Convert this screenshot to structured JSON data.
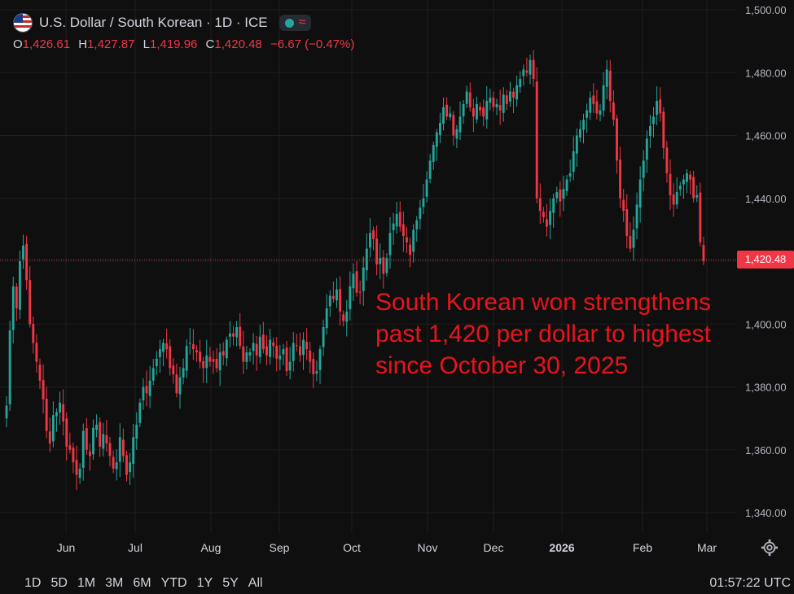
{
  "header": {
    "symbol": "U.S. Dollar / South Korean · 1D · ICE",
    "ohlc": {
      "open_label": "O",
      "open": "1,426.61",
      "high_label": "H",
      "high": "1,427.87",
      "low_label": "L",
      "low": "1,419.96",
      "close_label": "C",
      "close": "1,420.48",
      "change": "−6.67 (−0.47%)"
    }
  },
  "annotation": "South Korean won strengthens\npast 1,420 per dollar to highest\nsince October 30, 2025",
  "price_axis": {
    "ticks": [
      "1,500.00",
      "1,480.00",
      "1,460.00",
      "1,440.00",
      "1,420.00",
      "1,400.00",
      "1,380.00",
      "1,360.00",
      "1,340.00"
    ],
    "current_price": "1,420.48"
  },
  "time_axis": {
    "labels": [
      "Jun",
      "Jul",
      "Aug",
      "Sep",
      "Oct",
      "Nov",
      "Dec",
      "2026",
      "Feb",
      "Mar"
    ]
  },
  "bottom_bar": {
    "ranges": [
      "1D",
      "5D",
      "1M",
      "3M",
      "6M",
      "YTD",
      "1Y",
      "5Y",
      "All"
    ],
    "clock": "01:57:22 UTC"
  },
  "colors": {
    "up": "#26a69a",
    "down": "#f23645",
    "background": "#0f0f0f",
    "grid": "#1f1f1f",
    "annotation": "#e8141d"
  },
  "icons": {
    "flag": "us-kr-flag-icon",
    "status": "market-status-icon",
    "settings": "gear-icon"
  },
  "chart_data": {
    "type": "candlestick",
    "title": "U.S. Dollar / South Korean · 1D · ICE",
    "ylim": [
      1335,
      1502
    ],
    "x_labels": [
      "Jun",
      "Jul",
      "Aug",
      "Sep",
      "Oct",
      "Nov",
      "Dec",
      "2026",
      "Feb",
      "Mar"
    ],
    "series": [
      {
        "values": [
          1374,
          1398,
          1412,
          1405,
          1420,
          1425,
          1414,
          1400,
          1394,
          1388,
          1382,
          1376,
          1366,
          1362,
          1371,
          1372,
          1375,
          1369,
          1361,
          1360,
          1356,
          1352,
          1354,
          1366,
          1360,
          1358,
          1367,
          1368,
          1361,
          1365,
          1362,
          1358,
          1354,
          1356,
          1364,
          1358,
          1352,
          1356,
          1364,
          1368,
          1375,
          1380,
          1378,
          1382,
          1386,
          1389,
          1392,
          1394,
          1392,
          1386,
          1384,
          1378,
          1383,
          1386,
          1393,
          1394,
          1392,
          1391,
          1388,
          1386,
          1390,
          1388,
          1388,
          1386,
          1391,
          1390,
          1395,
          1397,
          1396,
          1399,
          1393,
          1388,
          1391,
          1391,
          1394,
          1390,
          1396,
          1392,
          1390,
          1395,
          1393,
          1389,
          1390,
          1392,
          1385,
          1388,
          1394,
          1393,
          1390,
          1395,
          1392,
          1388,
          1384,
          1385,
          1392,
          1399,
          1405,
          1409,
          1408,
          1411,
          1404,
          1401,
          1404,
          1412,
          1416,
          1410,
          1410,
          1418,
          1424,
          1429,
          1427,
          1419,
          1421,
          1416,
          1421,
          1429,
          1432,
          1435,
          1431,
          1428,
          1426,
          1422,
          1430,
          1433,
          1437,
          1440,
          1446,
          1452,
          1457,
          1461,
          1464,
          1469,
          1466,
          1467,
          1460,
          1462,
          1466,
          1470,
          1474,
          1469,
          1466,
          1470,
          1468,
          1466,
          1471,
          1472,
          1469,
          1470,
          1468,
          1473,
          1470,
          1474,
          1472,
          1476,
          1478,
          1481,
          1480,
          1484,
          1478,
          1440,
          1436,
          1434,
          1431,
          1436,
          1440,
          1442,
          1439,
          1443,
          1446,
          1448,
          1455,
          1460,
          1462,
          1465,
          1468,
          1472,
          1470,
          1467,
          1468,
          1476,
          1481,
          1471,
          1465,
          1452,
          1440,
          1436,
          1428,
          1424,
          1430,
          1438,
          1446,
          1452,
          1459,
          1463,
          1466,
          1471,
          1467,
          1456,
          1448,
          1441,
          1438,
          1442,
          1444,
          1446,
          1448,
          1446,
          1440,
          1441,
          1426,
          1420
        ]
      }
    ]
  }
}
